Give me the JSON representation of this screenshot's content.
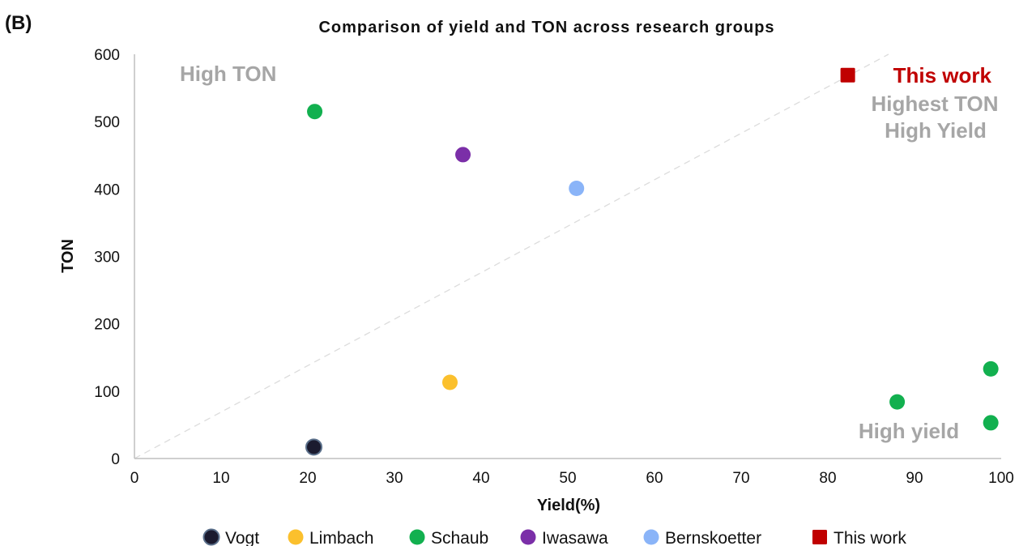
{
  "panel_label": "(B)",
  "colors": {
    "Vogt": "#1b1b2f",
    "Limbach": "#fbc02d",
    "Schaub": "#12b04f",
    "Iwasawa": "#7b2fa8",
    "Bernskoetter": "#8ab4f8",
    "This work": "#c00000"
  },
  "annotations": {
    "high_ton": "High TON",
    "this_work": "This work",
    "highest_ton": "Highest TON",
    "high_yield_top": "High Yield",
    "high_yield_bottom": "High yield"
  },
  "chart_data": {
    "type": "scatter",
    "title": "Comparison of yield and TON across research groups",
    "xlabel": "Yield(%)",
    "ylabel": "TON",
    "xlim": [
      0,
      100
    ],
    "ylim": [
      0,
      600
    ],
    "xticks": [
      0,
      10,
      20,
      30,
      40,
      50,
      60,
      70,
      80,
      90,
      100
    ],
    "yticks": [
      0,
      100,
      200,
      300,
      400,
      500,
      600
    ],
    "grid": false,
    "legend_position": "bottom",
    "trend_line": {
      "style": "dashed",
      "from": [
        0,
        0
      ],
      "to": [
        87,
        600
      ]
    },
    "series": [
      {
        "name": "Vogt",
        "marker": "circle",
        "points": [
          {
            "x": 20.7,
            "y": 17
          }
        ]
      },
      {
        "name": "Limbach",
        "marker": "circle",
        "points": [
          {
            "x": 36.4,
            "y": 113
          }
        ]
      },
      {
        "name": "Schaub",
        "marker": "circle",
        "points": [
          {
            "x": 20.8,
            "y": 515
          },
          {
            "x": 88,
            "y": 84
          },
          {
            "x": 98.8,
            "y": 133
          },
          {
            "x": 98.8,
            "y": 53
          }
        ]
      },
      {
        "name": "Iwasawa",
        "marker": "circle",
        "points": [
          {
            "x": 37.9,
            "y": 451
          }
        ]
      },
      {
        "name": "Bernskoetter",
        "marker": "circle",
        "points": [
          {
            "x": 51,
            "y": 401
          }
        ]
      },
      {
        "name": "This work",
        "marker": "square",
        "points": [
          {
            "x": 82.3,
            "y": 569
          }
        ]
      }
    ]
  }
}
